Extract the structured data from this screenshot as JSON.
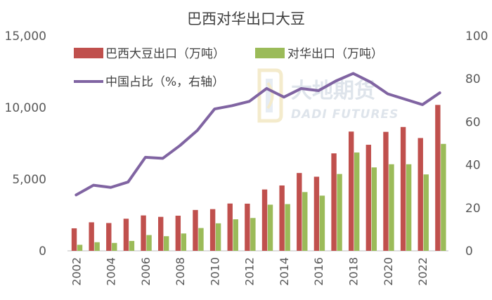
{
  "chart_data": {
    "type": "bar",
    "title": "巴西对华出口大豆",
    "x": [
      2002,
      2003,
      2004,
      2005,
      2006,
      2007,
      2008,
      2009,
      2010,
      2011,
      2012,
      2013,
      2014,
      2015,
      2016,
      2017,
      2018,
      2019,
      2020,
      2021,
      2022,
      2023
    ],
    "x_tick_labels": [
      "2002",
      "2004",
      "2006",
      "2008",
      "2010",
      "2012",
      "2014",
      "2016",
      "2018",
      "2020",
      "2022"
    ],
    "left_axis": {
      "ylim": [
        0,
        15000
      ],
      "ticks": [
        "0",
        "5,000",
        "10,000",
        "15,000"
      ]
    },
    "right_axis": {
      "ylim": [
        0,
        100
      ],
      "ticks": [
        "0",
        "20",
        "40",
        "60",
        "80",
        "100"
      ]
    },
    "series": [
      {
        "name": "巴西大豆出口（万吨）",
        "type": "bar",
        "axis": "left",
        "color": "#c0504d",
        "values": [
          1570,
          1990,
          1940,
          2240,
          2470,
          2370,
          2450,
          2850,
          2910,
          3300,
          3290,
          4280,
          4560,
          5430,
          5170,
          6800,
          8320,
          7400,
          8300,
          8640,
          7870,
          10180
        ]
      },
      {
        "name": "对华出口（万吨）",
        "type": "bar",
        "axis": "left",
        "color": "#9bbb59",
        "values": [
          420,
          600,
          550,
          690,
          1100,
          1020,
          1210,
          1590,
          1920,
          2200,
          2290,
          3220,
          3260,
          4100,
          3850,
          5360,
          6860,
          5820,
          6040,
          6040,
          5330,
          7460
        ]
      },
      {
        "name": "中国占比（%，右轴）",
        "type": "line",
        "axis": "right",
        "color": "#8064a2",
        "values": [
          26.0,
          30.5,
          29.5,
          32.0,
          43.5,
          43.0,
          49.0,
          56.0,
          66.0,
          67.5,
          69.5,
          75.5,
          71.5,
          75.5,
          74.5,
          79.0,
          82.5,
          78.5,
          73.0,
          70.5,
          68.0,
          73.5
        ]
      }
    ],
    "legend_position": "top-left",
    "grid": false
  },
  "watermark": {
    "cn": "大地期货",
    "en": "DADI FUTURES"
  }
}
